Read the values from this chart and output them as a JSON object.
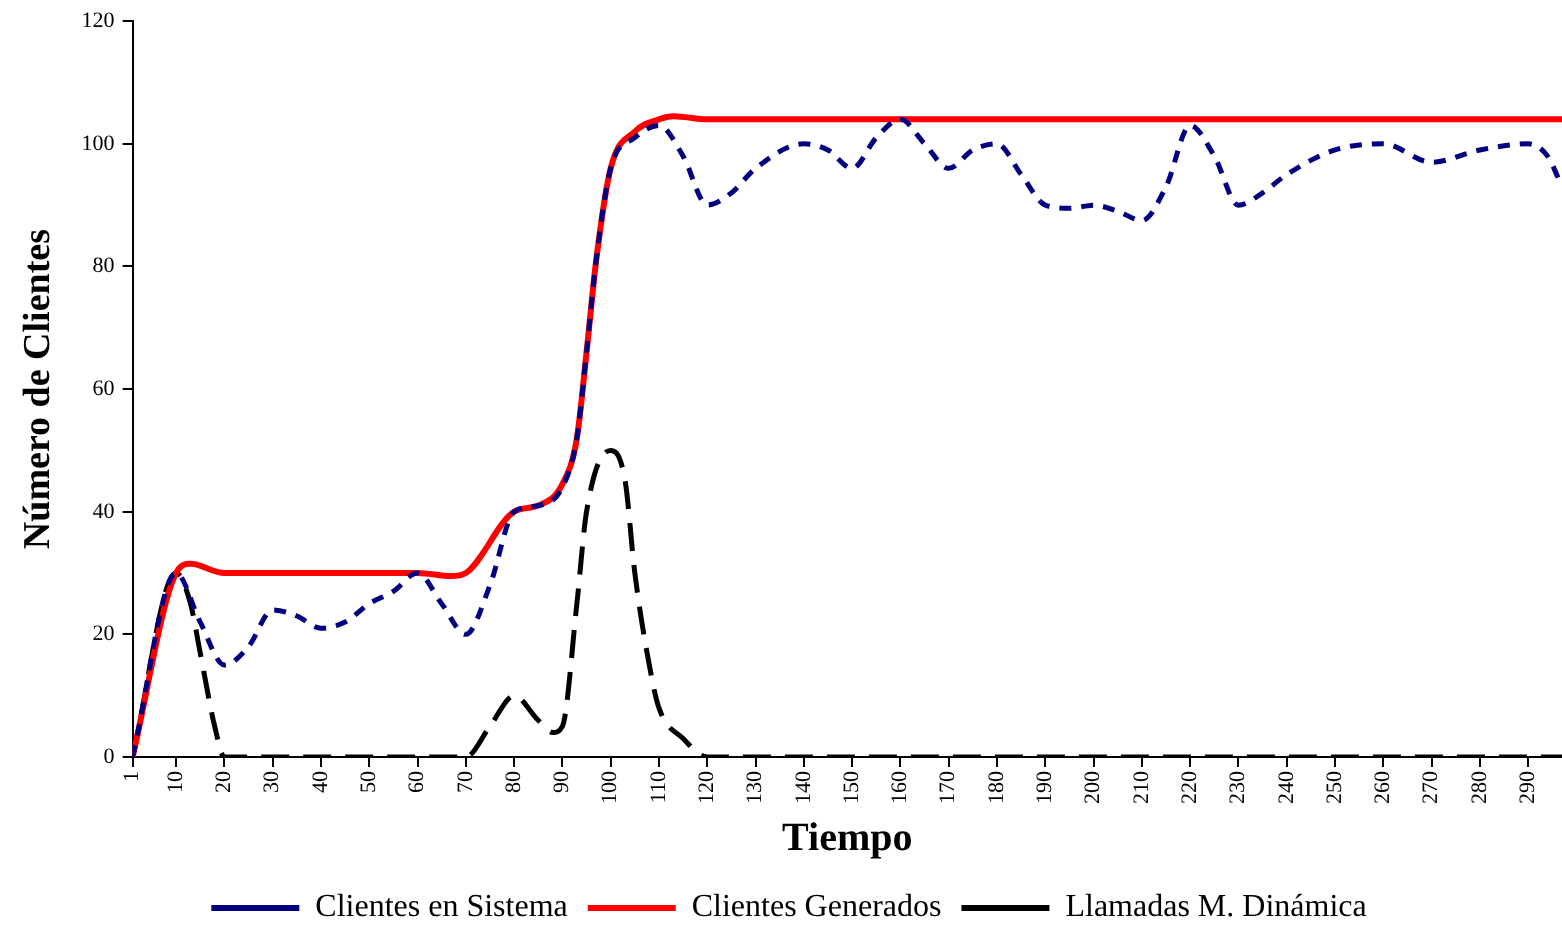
{
  "chart_data": {
    "type": "line",
    "xlabel": "Tiempo",
    "ylabel": "Número de Clientes",
    "xlim": [
      1,
      297
    ],
    "xticks": [
      1,
      10,
      20,
      30,
      40,
      50,
      60,
      70,
      80,
      90,
      100,
      110,
      120,
      130,
      140,
      150,
      160,
      170,
      180,
      190,
      200,
      210,
      220,
      230,
      240,
      250,
      260,
      270,
      280,
      290
    ],
    "ylim": [
      0,
      120
    ],
    "yticks": [
      0,
      20,
      40,
      60,
      80,
      100,
      120
    ],
    "grid": false,
    "legend": "bottom",
    "marker": "none",
    "series": [
      {
        "name": "Clientes en Sistema",
        "color": "#000080",
        "line_style": "dotted",
        "x": [
          1,
          10,
          15,
          20,
          25,
          30,
          35,
          40,
          45,
          50,
          55,
          60,
          65,
          70,
          75,
          80,
          85,
          90,
          93,
          95,
          97,
          100,
          105,
          110,
          115,
          120,
          125,
          130,
          140,
          145,
          150,
          155,
          160,
          165,
          170,
          175,
          180,
          185,
          190,
          195,
          200,
          205,
          210,
          215,
          220,
          225,
          230,
          235,
          240,
          250,
          260,
          270,
          280,
          290,
          294,
          297
        ],
        "values": [
          0,
          30,
          22,
          15,
          18,
          24,
          23,
          21,
          22,
          25,
          27,
          30,
          25,
          20,
          28,
          40,
          41,
          44,
          52,
          66,
          81,
          96,
          101,
          103,
          98,
          90,
          92,
          96,
          100,
          99,
          96,
          101,
          104,
          100,
          96,
          99,
          100,
          95,
          90,
          89.5,
          90,
          89,
          87.5,
          93,
          103,
          98,
          90,
          92,
          95,
          99,
          100,
          97,
          99,
          100,
          98,
          93
        ]
      },
      {
        "name": "Clientes Generados",
        "color": "#ff0000",
        "line_style": "solid",
        "x": [
          1,
          10,
          13,
          20,
          30,
          40,
          50,
          60,
          67,
          70,
          80,
          85,
          90,
          93,
          95,
          97,
          100,
          105,
          110,
          113,
          120,
          150,
          200,
          250,
          297
        ],
        "values": [
          0,
          30,
          31.5,
          30,
          30,
          30,
          30,
          30,
          29.5,
          30,
          40,
          41,
          44.5,
          52,
          66,
          81,
          96,
          102,
          104,
          104.5,
          104,
          104,
          104,
          104,
          104
        ]
      },
      {
        "name": "Llamadas M. Dinámica",
        "color": "#000000",
        "line_style": "dashed",
        "x": [
          1,
          10,
          13,
          15,
          18,
          20,
          30,
          60,
          70,
          75,
          80,
          85,
          88,
          90,
          93,
          95,
          100,
          103,
          105,
          108,
          110,
          115,
          120,
          150,
          200,
          250,
          297
        ],
        "values": [
          0,
          30,
          25,
          17,
          5,
          0,
          0,
          0,
          0,
          5,
          10,
          6,
          4,
          5,
          25,
          40,
          50,
          45,
          30,
          15,
          8,
          3,
          0,
          0,
          0,
          0,
          0
        ]
      }
    ]
  }
}
